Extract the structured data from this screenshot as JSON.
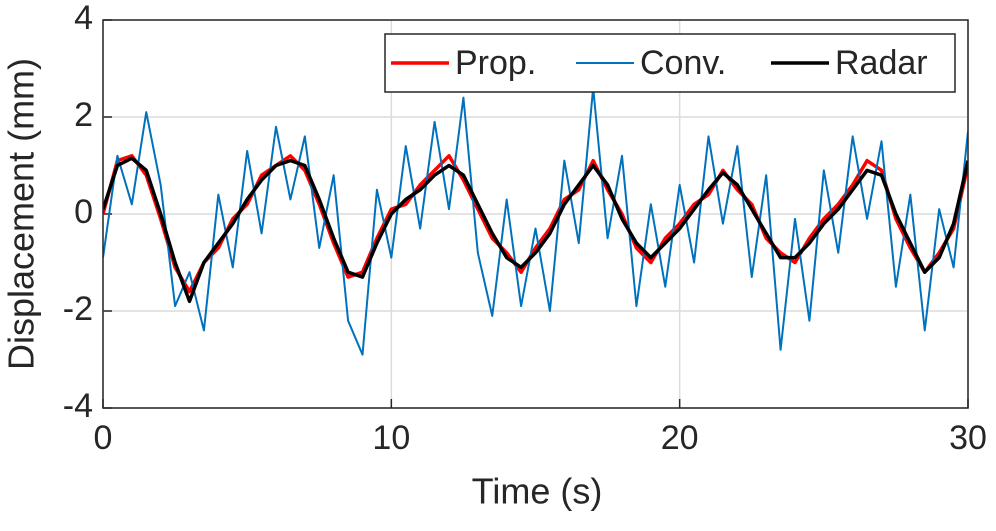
{
  "chart_data": {
    "type": "line",
    "xlabel": "Time (s)",
    "ylabel": "Displacement (mm)",
    "x": [
      0,
      0.5,
      1,
      1.5,
      2,
      2.5,
      3,
      3.5,
      4,
      4.5,
      5,
      5.5,
      6,
      6.5,
      7,
      7.5,
      8,
      8.5,
      9,
      9.5,
      10,
      10.5,
      11,
      11.5,
      12,
      12.5,
      13,
      13.5,
      14,
      14.5,
      15,
      15.5,
      16,
      16.5,
      17,
      17.5,
      18,
      18.5,
      19,
      19.5,
      20,
      20.5,
      21,
      21.5,
      22,
      22.5,
      23,
      23.5,
      24,
      24.5,
      25,
      25.5,
      26,
      26.5,
      27,
      27.5,
      28,
      28.5,
      29,
      29.5,
      30
    ],
    "series": [
      {
        "name": "Prop.",
        "color": "#ff0000",
        "width": 3.5,
        "values": [
          0.0,
          1.1,
          1.2,
          0.8,
          -0.1,
          -1.1,
          -1.6,
          -1.0,
          -0.7,
          -0.1,
          0.2,
          0.8,
          1.0,
          1.2,
          0.9,
          0.2,
          -0.6,
          -1.3,
          -1.2,
          -0.5,
          0.1,
          0.2,
          0.6,
          0.9,
          1.2,
          0.7,
          0.1,
          -0.5,
          -0.8,
          -1.2,
          -0.7,
          -0.3,
          0.3,
          0.5,
          1.1,
          0.5,
          0.0,
          -0.7,
          -1.0,
          -0.5,
          -0.2,
          0.2,
          0.4,
          0.9,
          0.5,
          0.2,
          -0.5,
          -0.8,
          -1.0,
          -0.5,
          -0.1,
          0.2,
          0.6,
          1.1,
          0.9,
          -0.1,
          -0.7,
          -1.2,
          -0.8,
          -0.3,
          1.0
        ]
      },
      {
        "name": "Conv.",
        "color": "#0072bd",
        "width": 2,
        "values": [
          -0.9,
          1.2,
          0.2,
          2.1,
          0.6,
          -1.9,
          -1.2,
          -2.4,
          0.4,
          -1.1,
          1.3,
          -0.4,
          1.8,
          0.3,
          1.6,
          -0.7,
          0.8,
          -2.2,
          -2.9,
          0.5,
          -0.9,
          1.4,
          -0.3,
          1.9,
          0.1,
          2.4,
          -0.8,
          -2.1,
          0.3,
          -1.9,
          -0.3,
          -2.0,
          1.1,
          -0.6,
          2.6,
          -0.5,
          1.2,
          -1.9,
          0.2,
          -1.5,
          0.6,
          -1.0,
          1.6,
          -0.2,
          1.4,
          -1.3,
          0.8,
          -2.8,
          -0.1,
          -2.2,
          0.9,
          -0.8,
          1.6,
          -0.1,
          1.5,
          -1.5,
          0.4,
          -2.4,
          0.1,
          -1.1,
          1.7
        ]
      },
      {
        "name": "Radar",
        "color": "#000000",
        "width": 3.5,
        "values": [
          0.1,
          1.0,
          1.15,
          0.9,
          0.0,
          -1.0,
          -1.8,
          -1.0,
          -0.6,
          -0.2,
          0.3,
          0.7,
          1.0,
          1.1,
          1.0,
          0.3,
          -0.5,
          -1.2,
          -1.3,
          -0.6,
          0.0,
          0.3,
          0.5,
          0.8,
          1.0,
          0.8,
          0.2,
          -0.4,
          -0.9,
          -1.1,
          -0.8,
          -0.4,
          0.2,
          0.6,
          1.0,
          0.6,
          -0.1,
          -0.6,
          -0.9,
          -0.6,
          -0.3,
          0.1,
          0.5,
          0.85,
          0.6,
          0.1,
          -0.4,
          -0.9,
          -0.9,
          -0.6,
          -0.2,
          0.1,
          0.5,
          0.9,
          0.8,
          0.0,
          -0.6,
          -1.2,
          -0.9,
          -0.2,
          1.1
        ]
      }
    ],
    "xlim": [
      0,
      30
    ],
    "xticks": [
      0,
      10,
      20,
      30
    ],
    "ylim": [
      -4,
      4
    ],
    "yticks": [
      -4,
      -2,
      0,
      2,
      4
    ],
    "grid": true,
    "legend": "top-right"
  }
}
